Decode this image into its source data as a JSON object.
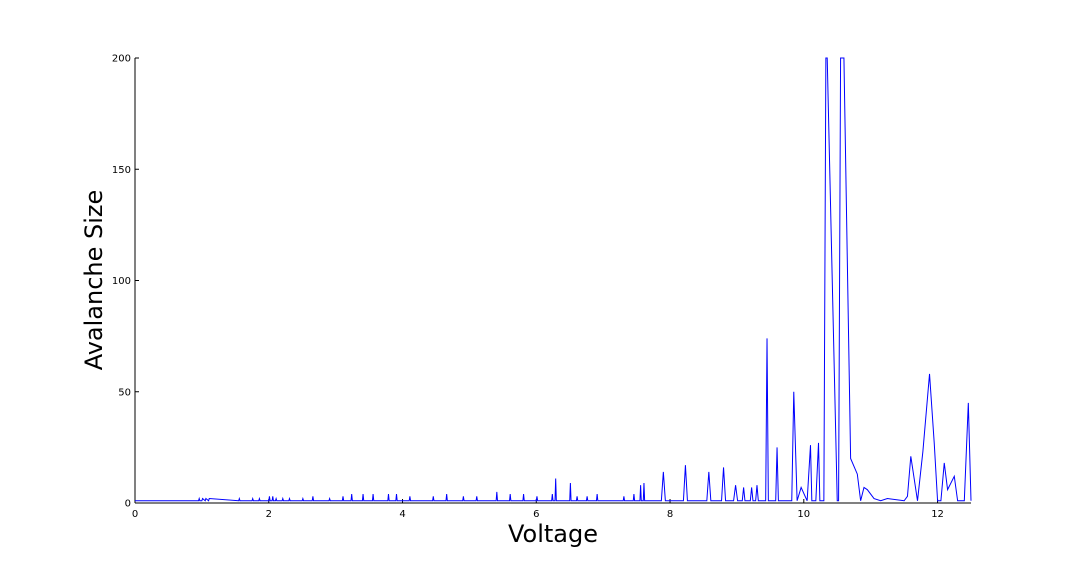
{
  "chart_data": {
    "type": "line",
    "title": "",
    "xlabel": "Voltage",
    "ylabel": "Avalanche Size",
    "xlim": [
      0,
      12.5
    ],
    "ylim": [
      0,
      200
    ],
    "grid": false,
    "legend": "none",
    "line_color": "#0000ff",
    "xticks": [
      0,
      2,
      4,
      6,
      8,
      10,
      12
    ],
    "xtick_labels": [
      "0",
      "2",
      "4",
      "6",
      "8",
      "10",
      "12"
    ],
    "yticks": [
      0,
      50,
      100,
      150,
      200
    ],
    "ytick_labels": [
      "0",
      "50",
      "100",
      "150",
      "200"
    ],
    "x": [
      0,
      0.95,
      0.96,
      0.97,
      1.0,
      1.01,
      1.05,
      1.06,
      1.1,
      1.11,
      1.55,
      1.56,
      1.57,
      1.75,
      1.76,
      1.77,
      1.85,
      1.86,
      1.87,
      2.0,
      2.01,
      2.02,
      2.05,
      2.06,
      2.07,
      2.1,
      2.11,
      2.12,
      2.2,
      2.21,
      2.22,
      2.3,
      2.31,
      2.32,
      2.5,
      2.51,
      2.52,
      2.65,
      2.66,
      2.67,
      2.9,
      2.91,
      2.92,
      3.1,
      3.11,
      3.12,
      3.23,
      3.24,
      3.25,
      3.4,
      3.41,
      3.42,
      3.55,
      3.56,
      3.57,
      3.78,
      3.79,
      3.8,
      3.9,
      3.91,
      3.92,
      4.1,
      4.11,
      4.12,
      4.45,
      4.46,
      4.47,
      4.65,
      4.66,
      4.67,
      4.9,
      4.91,
      4.92,
      5.1,
      5.11,
      5.12,
      5.4,
      5.41,
      5.42,
      5.6,
      5.61,
      5.62,
      5.8,
      5.81,
      5.82,
      6.0,
      6.01,
      6.02,
      6.23,
      6.24,
      6.25,
      6.28,
      6.29,
      6.3,
      6.5,
      6.51,
      6.52,
      6.6,
      6.61,
      6.62,
      6.75,
      6.76,
      6.77,
      6.9,
      6.91,
      6.92,
      7.3,
      7.31,
      7.32,
      7.45,
      7.46,
      7.47,
      7.55,
      7.56,
      7.57,
      7.6,
      7.61,
      7.62,
      7.87,
      7.9,
      7.93,
      8.2,
      8.23,
      8.26,
      8.55,
      8.58,
      8.61,
      8.77,
      8.8,
      8.83,
      8.95,
      8.98,
      9.01,
      9.08,
      9.1,
      9.12,
      9.2,
      9.22,
      9.24,
      9.28,
      9.3,
      9.32,
      9.43,
      9.45,
      9.47,
      9.58,
      9.6,
      9.62,
      9.82,
      9.85,
      9.9,
      9.96,
      10.05,
      10.1,
      10.12,
      10.18,
      10.22,
      10.24,
      10.3,
      10.33,
      10.35,
      10.5,
      10.52,
      10.55,
      10.6,
      10.7,
      10.8,
      10.85,
      10.9,
      10.95,
      11.05,
      11.15,
      11.25,
      11.5,
      11.55,
      11.6,
      11.7,
      11.78,
      11.88,
      11.95,
      12.0,
      12.05,
      12.1,
      12.15,
      12.25,
      12.3,
      12.4,
      12.46,
      12.5
    ],
    "y": [
      1,
      1,
      2,
      1,
      1,
      2,
      1,
      2,
      1,
      2,
      1,
      2,
      1,
      1,
      2,
      1,
      1,
      2,
      1,
      1,
      3,
      1,
      1,
      3,
      1,
      1,
      2,
      1,
      1,
      2,
      1,
      1,
      2,
      1,
      1,
      2,
      1,
      1,
      3,
      1,
      1,
      2,
      1,
      1,
      3,
      1,
      1,
      4,
      1,
      1,
      4,
      1,
      1,
      4,
      1,
      1,
      4,
      1,
      1,
      4,
      1,
      1,
      3,
      1,
      1,
      3,
      1,
      1,
      4,
      1,
      1,
      3,
      1,
      1,
      3,
      1,
      1,
      5,
      1,
      1,
      4,
      1,
      1,
      4,
      1,
      1,
      3,
      1,
      1,
      4,
      1,
      1,
      11,
      1,
      1,
      9,
      1,
      1,
      3,
      1,
      1,
      3,
      1,
      1,
      4,
      1,
      1,
      3,
      1,
      1,
      4,
      1,
      1,
      8,
      1,
      1,
      9,
      1,
      1,
      14,
      1,
      1,
      17,
      1,
      1,
      14,
      1,
      1,
      16,
      1,
      1,
      8,
      1,
      1,
      7,
      1,
      1,
      7,
      1,
      1,
      8,
      1,
      1,
      74,
      1,
      1,
      25,
      1,
      1,
      50,
      1,
      7,
      1,
      26,
      1,
      1,
      27,
      1,
      1,
      200,
      200,
      1,
      1,
      200,
      200,
      20,
      13,
      1,
      7,
      6,
      2,
      1,
      2,
      1,
      3,
      21,
      1,
      23,
      58,
      27,
      1,
      1,
      18,
      6,
      12,
      1,
      1,
      45,
      1
    ]
  }
}
